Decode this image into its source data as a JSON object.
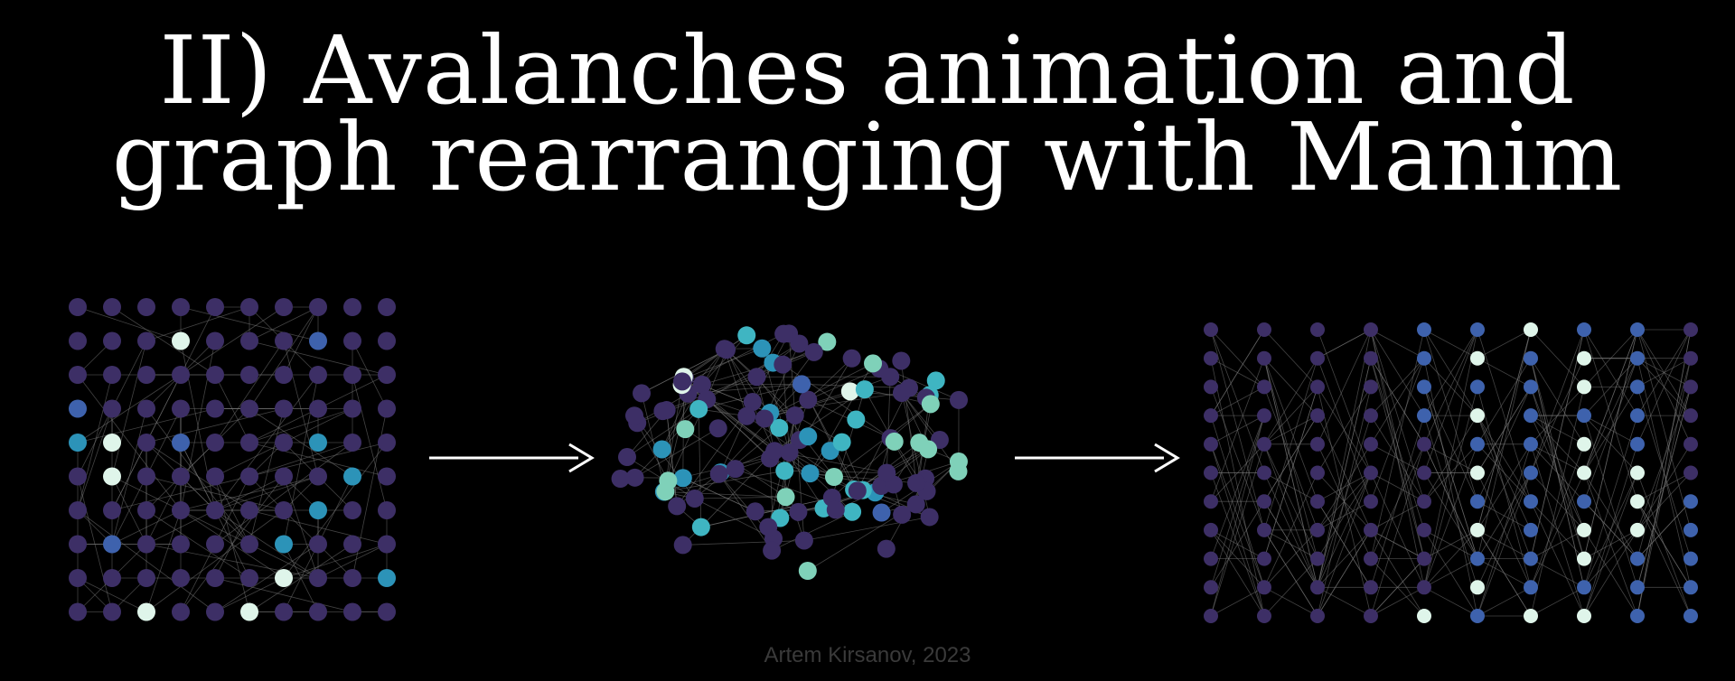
{
  "title": {
    "line1": "II) Avalanches animation and",
    "line2": "graph rearranging with Manim"
  },
  "credit": "Artem Kirsanov, 2023",
  "colors": {
    "background": "#000000",
    "node_dark": "#3d2f66",
    "node_blue": "#3e62ad",
    "node_teal": "#2c93b8",
    "node_cyan": "#3fb5c2",
    "node_mint": "#7fd1b9",
    "node_pale": "#dff5ea",
    "edge": "#7a7a7a",
    "arrow": "#ffffff"
  },
  "icons": [
    "grid-graph",
    "clustered-graph",
    "layered-graph",
    "right-arrow-icon"
  ]
}
